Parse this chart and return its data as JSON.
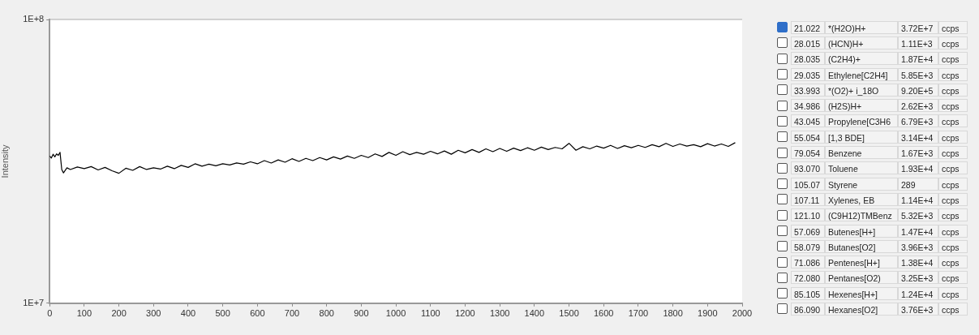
{
  "chart_data": [
    {
      "type": "line",
      "ylabel": "Intensity",
      "log": "y",
      "grid": false,
      "legend": false,
      "marker": "none",
      "line_style": "solid",
      "xlim": [
        0,
        2000
      ],
      "xticks": [
        0,
        100,
        200,
        300,
        400,
        500,
        600,
        700,
        800,
        900,
        1000,
        1100,
        1200,
        1300,
        1400,
        1500,
        1600,
        1700,
        1800,
        1900,
        2000
      ],
      "ylim": [
        10000000,
        100000000
      ],
      "yticks": [
        {
          "value": 10000000,
          "label": "1E+7"
        },
        {
          "value": 100000000,
          "label": "1E+8"
        }
      ],
      "series": [
        {
          "color": "#000000",
          "x": [
            0,
            5,
            10,
            15,
            20,
            25,
            30,
            35,
            40,
            50,
            60,
            80,
            100,
            120,
            140,
            160,
            180,
            200,
            220,
            240,
            260,
            280,
            300,
            320,
            340,
            360,
            380,
            400,
            420,
            440,
            460,
            480,
            500,
            520,
            540,
            560,
            580,
            600,
            620,
            640,
            660,
            680,
            700,
            720,
            740,
            760,
            780,
            800,
            820,
            840,
            860,
            880,
            900,
            920,
            940,
            960,
            980,
            1000,
            1020,
            1040,
            1060,
            1080,
            1100,
            1120,
            1140,
            1160,
            1180,
            1200,
            1220,
            1240,
            1260,
            1280,
            1300,
            1320,
            1340,
            1360,
            1380,
            1400,
            1420,
            1440,
            1460,
            1480,
            1500,
            1520,
            1540,
            1560,
            1580,
            1600,
            1620,
            1640,
            1660,
            1680,
            1700,
            1720,
            1740,
            1760,
            1780,
            1800,
            1820,
            1840,
            1860,
            1880,
            1900,
            1920,
            1940,
            1960,
            1980
          ],
          "values": [
            33000000,
            32500000,
            33500000,
            32800000,
            33600000,
            33200000,
            34000000,
            29600000,
            28800000,
            30000000,
            29600000,
            30200000,
            29800000,
            30300000,
            29500000,
            30100000,
            29300000,
            28700000,
            29900000,
            29400000,
            30300000,
            29600000,
            30000000,
            29700000,
            30400000,
            29800000,
            30600000,
            30100000,
            31000000,
            30400000,
            30900000,
            30500000,
            31000000,
            30700000,
            31200000,
            30900000,
            31500000,
            31000000,
            31800000,
            31200000,
            32000000,
            31400000,
            32300000,
            31600000,
            32400000,
            31800000,
            32600000,
            32000000,
            32800000,
            32200000,
            33000000,
            32400000,
            33200000,
            32600000,
            33600000,
            32900000,
            34000000,
            33200000,
            34200000,
            33400000,
            34000000,
            33500000,
            34300000,
            33600000,
            34400000,
            33500000,
            34600000,
            33900000,
            34800000,
            34000000,
            35000000,
            34200000,
            35100000,
            34300000,
            35200000,
            34500000,
            35300000,
            34600000,
            35500000,
            34800000,
            35400000,
            35000000,
            36600000,
            34600000,
            35600000,
            35000000,
            35800000,
            35200000,
            36000000,
            35100000,
            35900000,
            35300000,
            36000000,
            35400000,
            36200000,
            35600000,
            36600000,
            35700000,
            36400000,
            35800000,
            36200000,
            35600000,
            36500000,
            35800000,
            36400000,
            35700000,
            36800000
          ]
        }
      ]
    },
    {
      "type": "other",
      "annotations": [
        "21.022",
        "*(H2O)H+",
        "3.72E+7",
        "ccps",
        "28.015",
        "(HCN)H+",
        "1.11E+3",
        "ccps",
        "28.035",
        "(C2H4)+",
        "1.87E+4",
        "ccps",
        "29.035",
        "Ethylene[C2H4]",
        "5.85E+3",
        "ccps",
        "33.993",
        "*(O2)+ i_18O",
        "9.20E+5",
        "ccps",
        "34.986",
        "(H2S)H+",
        "2.62E+3",
        "ccps",
        "43.045",
        "Propylene[C3H6",
        "6.79E+3",
        "ccps",
        "55.054",
        "[1,3 BDE]",
        "3.14E+4",
        "ccps",
        "79.054",
        "Benzene",
        "1.67E+3",
        "ccps",
        "93.070",
        "Toluene",
        "1.93E+4",
        "ccps",
        "105.07",
        "Styrene",
        "289",
        "ccps",
        "107.11",
        "Xylenes, EB",
        "1.14E+4",
        "ccps",
        "121.10",
        "(C9H12)TMBenz",
        "5.32E+3",
        "ccps",
        "57.069",
        "Butenes[H+]",
        "1.47E+4",
        "ccps",
        "58.079",
        "Butanes[O2]",
        "3.96E+3",
        "ccps",
        "71.086",
        "Pentenes[H+]",
        "1.38E+4",
        "ccps",
        "72.080",
        "Pentanes[O2)",
        "3.25E+3",
        "ccps",
        "85.105",
        "Hexenes[H+]",
        "1.24E+4",
        "ccps",
        "86.090",
        "Hexanes[O2]",
        "3.76E+3",
        "ccps"
      ]
    }
  ]
}
